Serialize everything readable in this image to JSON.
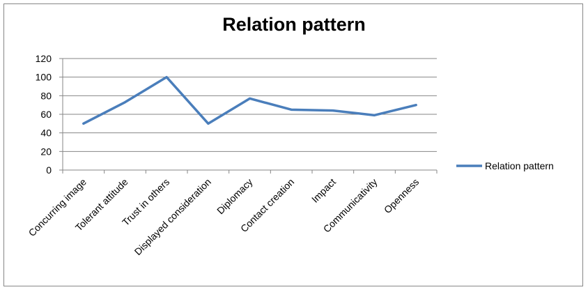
{
  "chart_data": {
    "type": "line",
    "title": "Relation pattern",
    "categories": [
      "Concurring image",
      "Tolerant attitude",
      "Trust in others",
      "Displayed consideration",
      "Diplomacy",
      "Contact creation",
      "Impact",
      "Communicativity",
      "Openness"
    ],
    "series": [
      {
        "name": "Relation pattern",
        "values": [
          50,
          73,
          100,
          50,
          77,
          65,
          64,
          59,
          70
        ],
        "color": "#4A7EBB"
      }
    ],
    "ylim": [
      0,
      120
    ],
    "yticks": [
      0,
      20,
      40,
      60,
      80,
      100,
      120
    ],
    "grid": true,
    "legend": "right"
  }
}
